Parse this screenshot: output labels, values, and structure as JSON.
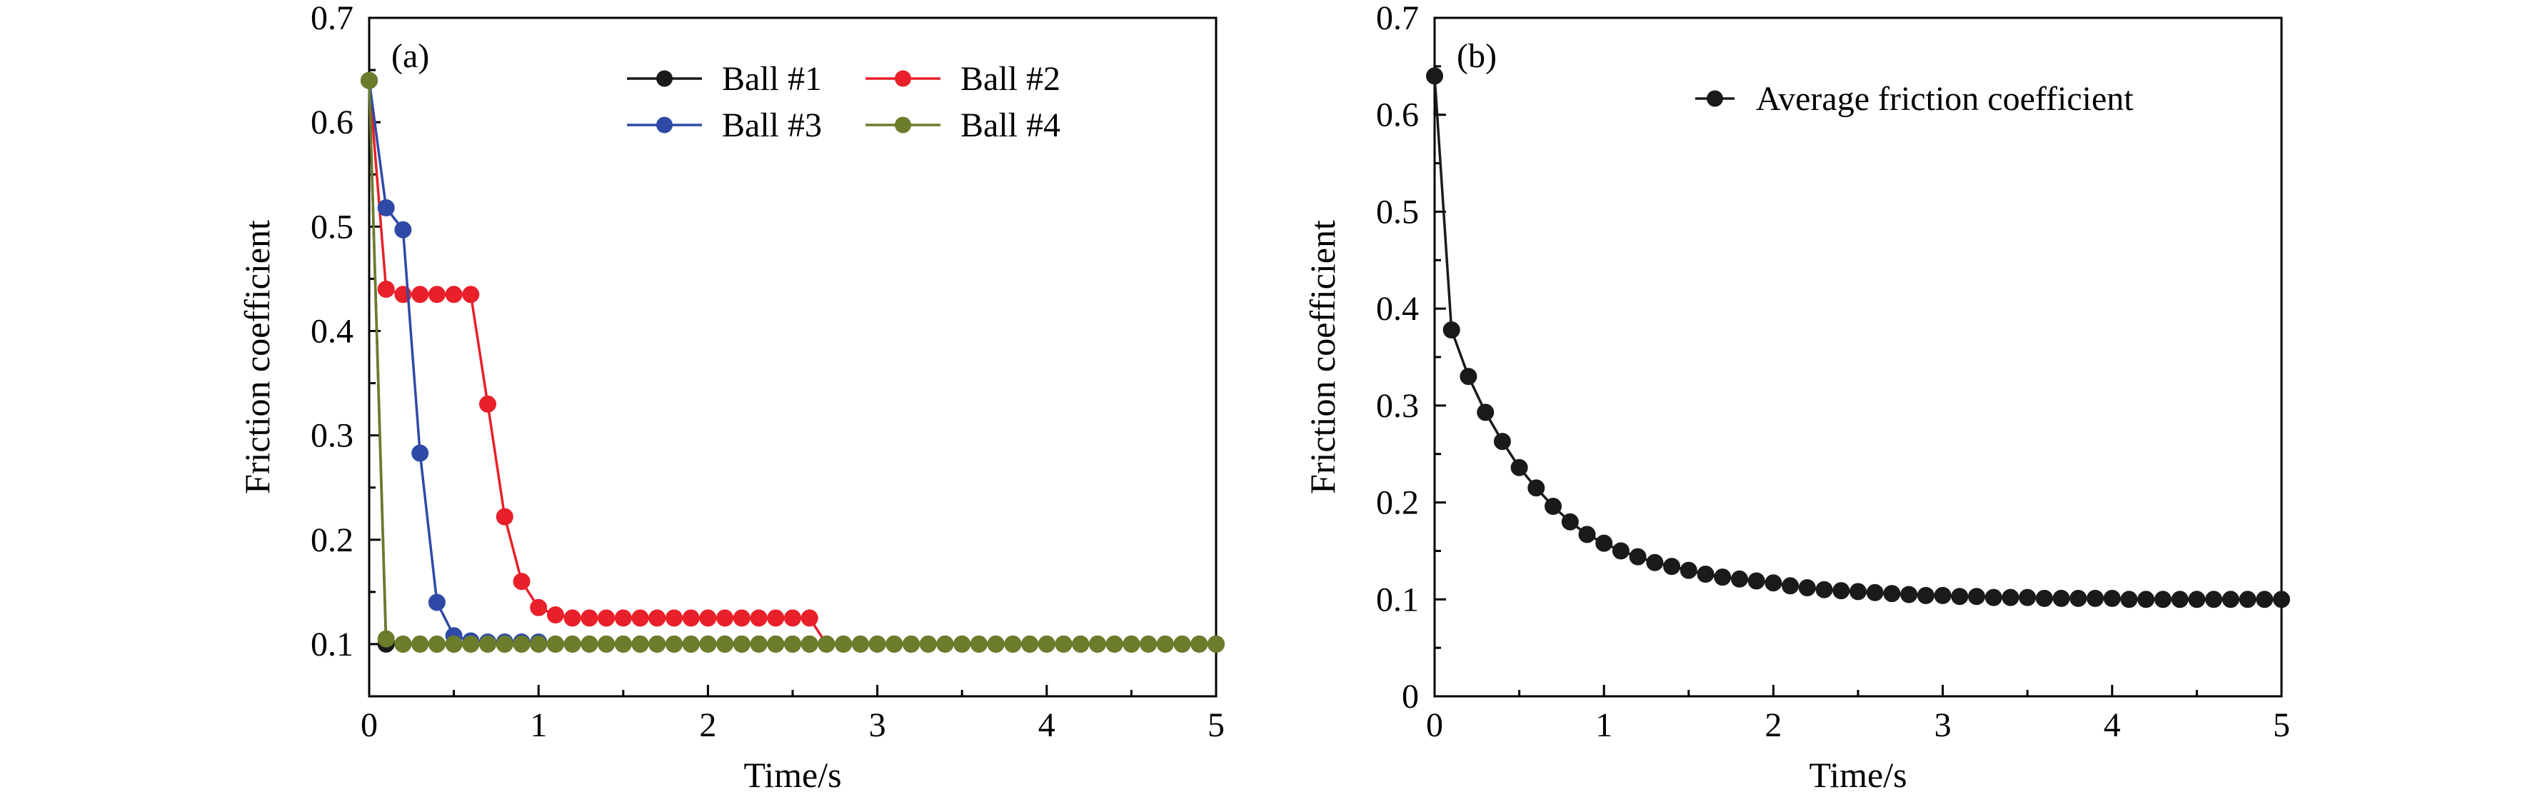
{
  "chart_data": [
    {
      "type": "line",
      "panel_label": "(a)",
      "xlabel": "Time/s",
      "ylabel": "Friction coefficient",
      "xlim": [
        0,
        5
      ],
      "ylim": [
        0.05,
        0.7
      ],
      "x_ticks": [
        "0",
        "1",
        "2",
        "3",
        "4",
        "5"
      ],
      "y_ticks": [
        "0.1",
        "0.2",
        "0.3",
        "0.4",
        "0.5",
        "0.6",
        "0.7"
      ],
      "grid": false,
      "legend_position": "top-right, two columns",
      "series": [
        {
          "name": "Ball #1",
          "color": "#1a1a1a",
          "x": [
            0,
            0.1,
            0.2,
            0.3,
            0.4,
            0.5,
            0.6,
            0.7,
            0.8,
            0.9,
            1.0,
            1.1,
            1.2,
            1.3,
            1.4,
            1.5,
            1.6,
            1.7,
            1.8,
            1.9,
            2.0,
            2.1,
            2.2,
            2.3,
            2.4,
            2.5,
            2.6,
            2.7,
            2.8,
            2.9,
            3.0,
            3.1,
            3.2,
            3.3,
            3.4,
            3.5,
            3.6,
            3.7,
            3.8,
            3.9,
            4.0,
            4.1,
            4.2,
            4.3,
            4.4,
            4.5,
            4.6,
            4.7,
            4.8,
            4.9,
            5.0
          ],
          "y": [
            0.64,
            0.1,
            0.1,
            0.1,
            0.1,
            0.1,
            0.1,
            0.1,
            0.1,
            0.1,
            0.1,
            0.1,
            0.1,
            0.1,
            0.1,
            0.1,
            0.1,
            0.1,
            0.1,
            0.1,
            0.1,
            0.1,
            0.1,
            0.1,
            0.1,
            0.1,
            0.1,
            0.1,
            0.1,
            0.1,
            0.1,
            0.1,
            0.1,
            0.1,
            0.1,
            0.1,
            0.1,
            0.1,
            0.1,
            0.1,
            0.1,
            0.1,
            0.1,
            0.1,
            0.1,
            0.1,
            0.1,
            0.1,
            0.1,
            0.1,
            0.1
          ]
        },
        {
          "name": "Ball #2",
          "color": "#e8202a",
          "x": [
            0,
            0.1,
            0.2,
            0.3,
            0.4,
            0.5,
            0.6,
            0.7,
            0.8,
            0.9,
            1.0,
            1.1,
            1.2,
            1.3,
            1.4,
            1.5,
            1.6,
            1.7,
            1.8,
            1.9,
            2.0,
            2.1,
            2.2,
            2.3,
            2.4,
            2.5,
            2.6,
            2.7
          ],
          "y": [
            0.64,
            0.44,
            0.435,
            0.435,
            0.435,
            0.435,
            0.435,
            0.33,
            0.222,
            0.16,
            0.135,
            0.128,
            0.125,
            0.125,
            0.125,
            0.125,
            0.125,
            0.125,
            0.125,
            0.125,
            0.125,
            0.125,
            0.125,
            0.125,
            0.125,
            0.125,
            0.125,
            0.1
          ]
        },
        {
          "name": "Ball #3",
          "color": "#2f4aa6",
          "x": [
            0,
            0.1,
            0.2,
            0.3,
            0.4,
            0.5,
            0.6,
            0.7,
            0.8,
            0.9,
            1.0
          ],
          "y": [
            0.64,
            0.518,
            0.497,
            0.283,
            0.14,
            0.108,
            0.103,
            0.102,
            0.102,
            0.102,
            0.102
          ]
        },
        {
          "name": "Ball #4",
          "color": "#6b7d2a",
          "x": [
            0,
            0.1,
            0.2,
            0.3,
            0.4,
            0.5,
            0.6,
            0.7,
            0.8,
            0.9,
            1.0,
            1.1,
            1.2,
            1.3,
            1.4,
            1.5,
            1.6,
            1.7,
            1.8,
            1.9,
            2.0,
            2.1,
            2.2,
            2.3,
            2.4,
            2.5,
            2.6,
            2.7,
            2.8,
            2.9,
            3.0,
            3.1,
            3.2,
            3.3,
            3.4,
            3.5,
            3.6,
            3.7,
            3.8,
            3.9,
            4.0,
            4.1,
            4.2,
            4.3,
            4.4,
            4.5,
            4.6,
            4.7,
            4.8,
            4.9,
            5.0
          ],
          "y": [
            0.64,
            0.105,
            0.1,
            0.1,
            0.1,
            0.1,
            0.1,
            0.1,
            0.1,
            0.1,
            0.1,
            0.1,
            0.1,
            0.1,
            0.1,
            0.1,
            0.1,
            0.1,
            0.1,
            0.1,
            0.1,
            0.1,
            0.1,
            0.1,
            0.1,
            0.1,
            0.1,
            0.1,
            0.1,
            0.1,
            0.1,
            0.1,
            0.1,
            0.1,
            0.1,
            0.1,
            0.1,
            0.1,
            0.1,
            0.1,
            0.1,
            0.1,
            0.1,
            0.1,
            0.1,
            0.1,
            0.1,
            0.1,
            0.1,
            0.1,
            0.1
          ]
        }
      ]
    },
    {
      "type": "line",
      "panel_label": "(b)",
      "xlabel": "Time/s",
      "ylabel": "Friction coefficient",
      "xlim": [
        0,
        5
      ],
      "ylim": [
        0,
        0.7
      ],
      "x_ticks": [
        "0",
        "1",
        "2",
        "3",
        "4",
        "5"
      ],
      "y_ticks": [
        "0",
        "0.1",
        "0.2",
        "0.3",
        "0.4",
        "0.5",
        "0.6",
        "0.7"
      ],
      "grid": false,
      "legend_position": "top-right",
      "series": [
        {
          "name": "Average friction coefficient",
          "color": "#1a1a1a",
          "x": [
            0,
            0.1,
            0.2,
            0.3,
            0.4,
            0.5,
            0.6,
            0.7,
            0.8,
            0.9,
            1.0,
            1.1,
            1.2,
            1.3,
            1.4,
            1.5,
            1.6,
            1.7,
            1.8,
            1.9,
            2.0,
            2.1,
            2.2,
            2.3,
            2.4,
            2.5,
            2.6,
            2.7,
            2.8,
            2.9,
            3.0,
            3.1,
            3.2,
            3.3,
            3.4,
            3.5,
            3.6,
            3.7,
            3.8,
            3.9,
            4.0,
            4.1,
            4.2,
            4.3,
            4.4,
            4.5,
            4.6,
            4.7,
            4.8,
            4.9,
            5.0
          ],
          "y": [
            0.64,
            0.378,
            0.33,
            0.293,
            0.263,
            0.236,
            0.215,
            0.196,
            0.18,
            0.167,
            0.158,
            0.15,
            0.144,
            0.138,
            0.134,
            0.13,
            0.126,
            0.123,
            0.121,
            0.119,
            0.117,
            0.114,
            0.112,
            0.11,
            0.109,
            0.108,
            0.107,
            0.106,
            0.105,
            0.104,
            0.104,
            0.103,
            0.103,
            0.102,
            0.102,
            0.102,
            0.101,
            0.101,
            0.101,
            0.101,
            0.101,
            0.1,
            0.1,
            0.1,
            0.1,
            0.1,
            0.1,
            0.1,
            0.1,
            0.1,
            0.1
          ]
        }
      ]
    }
  ]
}
